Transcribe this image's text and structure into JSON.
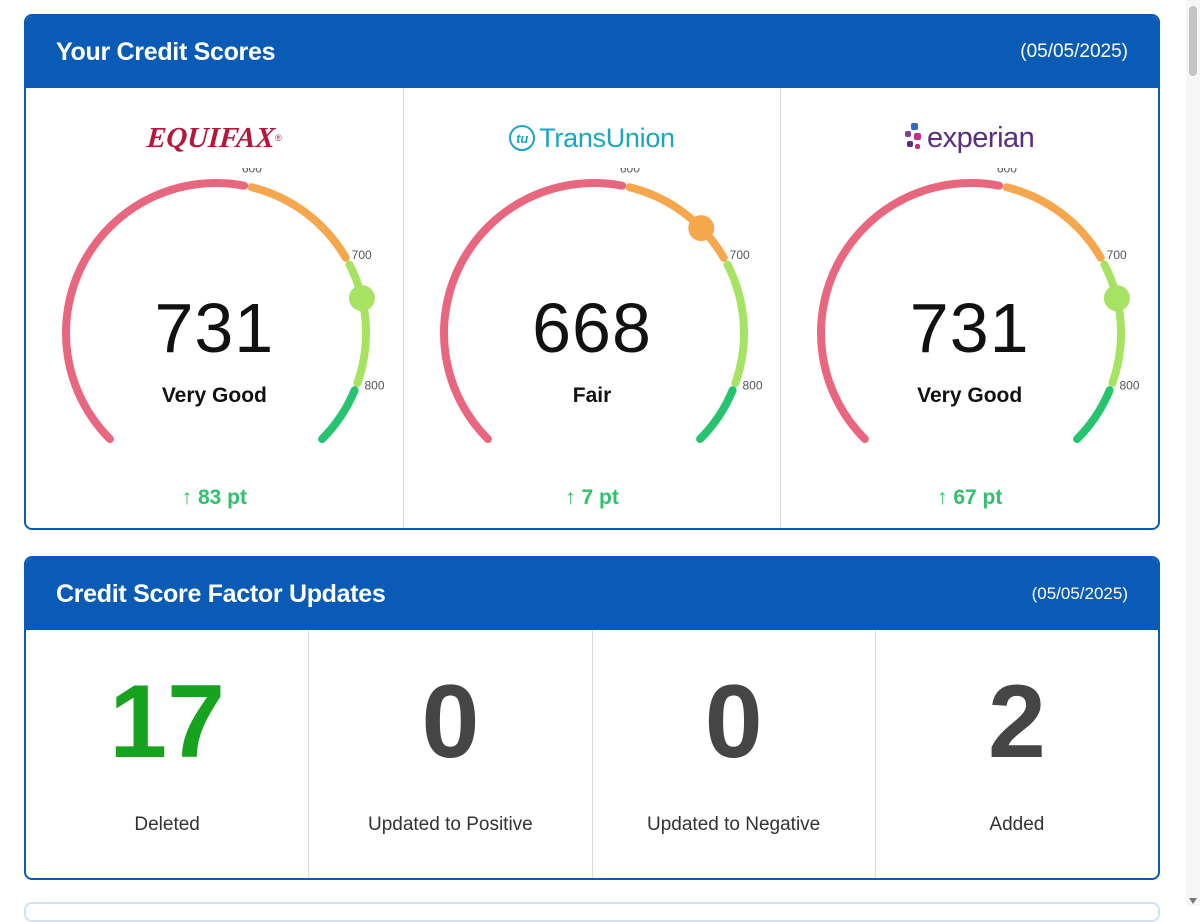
{
  "scores": {
    "title": "Your Credit Scores",
    "date": "(05/05/2025)",
    "tick_labels": [
      "600",
      "700",
      "800"
    ],
    "bureaus": [
      {
        "name": "EQUIFAX",
        "score": "731",
        "rating": "Very Good",
        "change": "↑ 83 pt"
      },
      {
        "name": "TransUnion",
        "badge": "tu",
        "score": "668",
        "rating": "Fair",
        "change": "↑ 7 pt"
      },
      {
        "name": "experian",
        "score": "731",
        "rating": "Very Good",
        "change": "↑ 67 pt"
      }
    ]
  },
  "gauge_values": [
    731,
    668,
    731
  ],
  "gauge_colors": {
    "poor": "#e8677f",
    "fair": "#f6a64c",
    "good": "#a7e363",
    "excellent": "#26c46f",
    "indicator_fair": "#f6a64c",
    "indicator_good": "#a7e363"
  },
  "factors": {
    "title": "Credit Score Factor Updates",
    "date": "(05/05/2025)",
    "items": [
      {
        "count": "17",
        "label": "Deleted"
      },
      {
        "count": "0",
        "label": "Updated to Positive"
      },
      {
        "count": "0",
        "label": "Updated to Negative"
      },
      {
        "count": "2",
        "label": "Added"
      }
    ]
  },
  "colors": {
    "header_blue": "#0a5bb5",
    "positive_green": "#2fc26a",
    "deleted_green": "#17a31f"
  }
}
